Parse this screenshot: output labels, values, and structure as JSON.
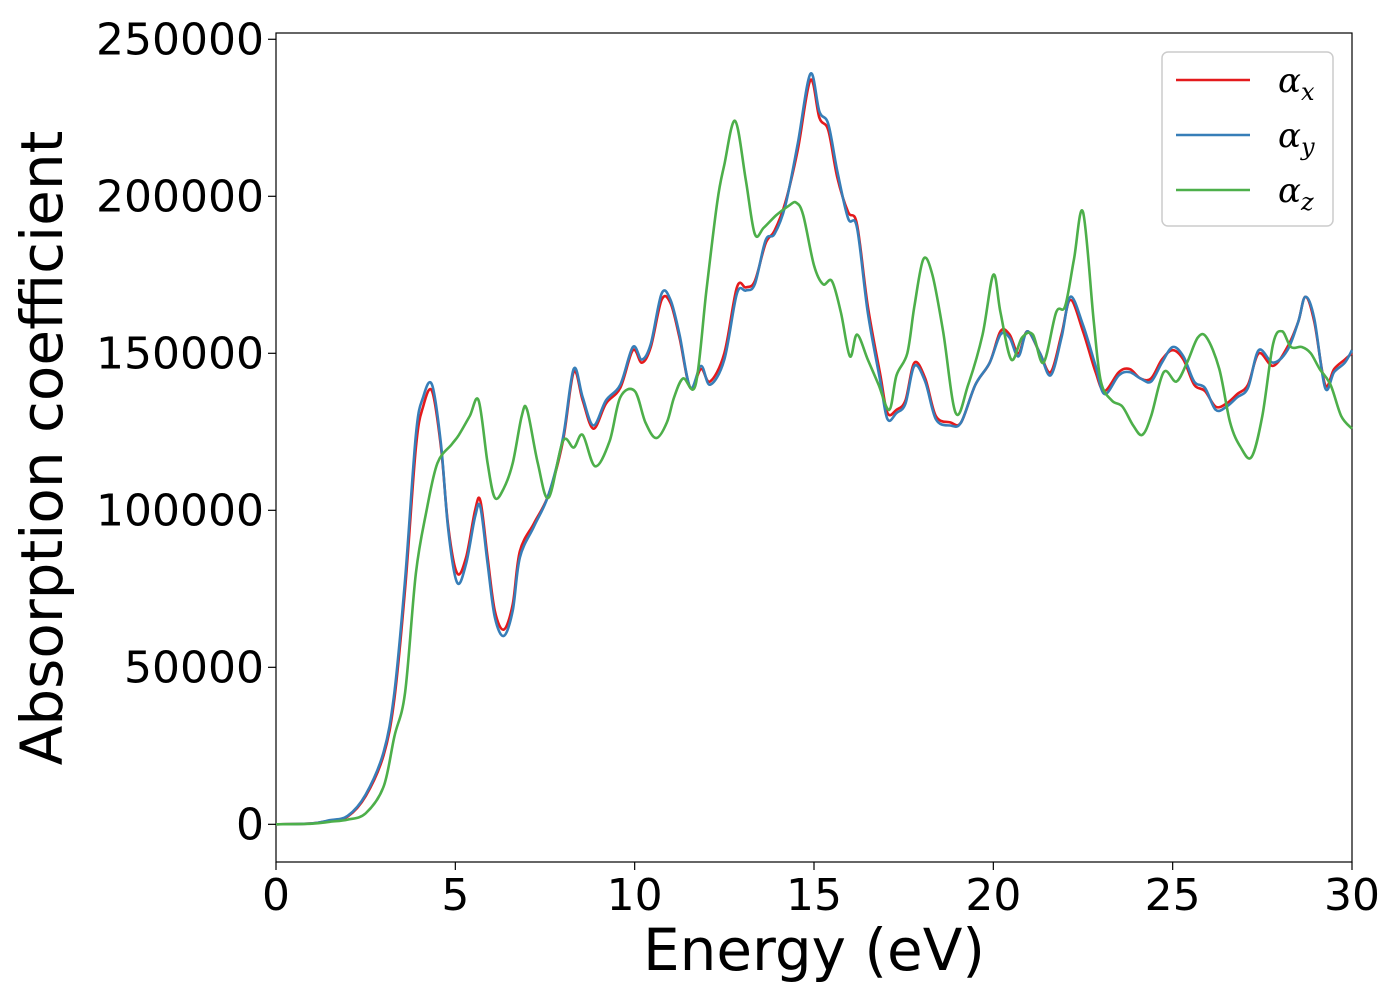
{
  "chart_data": {
    "type": "line",
    "title": "",
    "xlabel": "Energy (eV)",
    "ylabel": "Absorption coefficient",
    "xlim": [
      0,
      30
    ],
    "ylim": [
      -12000,
      252000
    ],
    "xticks": [
      0,
      5,
      10,
      15,
      20,
      25,
      30
    ],
    "yticks": [
      0,
      50000,
      100000,
      150000,
      200000,
      250000
    ],
    "grid": false,
    "legend_position": "top-right",
    "series": [
      {
        "name": "αx",
        "label_base": "α",
        "label_sub": "x",
        "color": "#e41a1c",
        "x": [
          0,
          1,
          1.5,
          2,
          2.5,
          3,
          3.3,
          3.6,
          3.9,
          4.1,
          4.35,
          4.6,
          4.8,
          5.05,
          5.3,
          5.55,
          5.7,
          5.9,
          6.1,
          6.35,
          6.6,
          6.8,
          7.2,
          7.6,
          8.0,
          8.3,
          8.55,
          8.85,
          9.2,
          9.6,
          9.95,
          10.2,
          10.45,
          10.75,
          11.0,
          11.25,
          11.55,
          11.85,
          12.1,
          12.5,
          12.85,
          13.1,
          13.35,
          13.65,
          13.9,
          14.2,
          14.55,
          14.9,
          15.15,
          15.4,
          15.65,
          15.95,
          16.2,
          16.5,
          16.85,
          17.05,
          17.3,
          17.55,
          17.8,
          18.1,
          18.4,
          18.8,
          19.1,
          19.5,
          19.9,
          20.2,
          20.45,
          20.7,
          20.95,
          21.3,
          21.6,
          21.9,
          22.15,
          22.5,
          22.85,
          23.1,
          23.5,
          23.8,
          24.1,
          24.4,
          24.7,
          25.0,
          25.3,
          25.6,
          25.9,
          26.2,
          26.5,
          26.8,
          27.1,
          27.4,
          27.8,
          28.2,
          28.5,
          28.7,
          28.95,
          29.25,
          29.5,
          29.8,
          30.0
        ],
        "values": [
          0,
          300,
          1200,
          2500,
          9000,
          22000,
          40000,
          75000,
          120000,
          133000,
          138000,
          120000,
          95000,
          80000,
          85000,
          100000,
          103000,
          85000,
          68000,
          62000,
          70000,
          87000,
          96000,
          105000,
          122000,
          144000,
          135000,
          126000,
          134000,
          139000,
          151000,
          147000,
          152000,
          167000,
          166000,
          155000,
          139000,
          145000,
          141000,
          150000,
          171000,
          171000,
          173000,
          185000,
          189000,
          198000,
          215000,
          237000,
          225000,
          221000,
          206000,
          195000,
          191000,
          165000,
          143000,
          131000,
          132000,
          135000,
          147000,
          142000,
          130000,
          128000,
          128000,
          140000,
          147000,
          157000,
          156000,
          150000,
          157000,
          150000,
          144000,
          156000,
          167000,
          157000,
          144000,
          138000,
          144000,
          145000,
          142000,
          142000,
          148000,
          151000,
          148000,
          140000,
          138000,
          133000,
          134000,
          137000,
          140000,
          150000,
          146000,
          152000,
          160000,
          168000,
          160000,
          140000,
          145000,
          148000,
          150000
        ]
      },
      {
        "name": "αy",
        "label_base": "α",
        "label_sub": "y",
        "color": "#377eb8",
        "x": [
          0,
          1,
          1.5,
          2,
          2.5,
          3,
          3.3,
          3.6,
          3.9,
          4.1,
          4.35,
          4.6,
          4.8,
          5.05,
          5.3,
          5.55,
          5.7,
          5.9,
          6.1,
          6.35,
          6.6,
          6.8,
          7.2,
          7.6,
          8.0,
          8.3,
          8.55,
          8.85,
          9.2,
          9.6,
          9.95,
          10.2,
          10.45,
          10.75,
          11.0,
          11.25,
          11.55,
          11.85,
          12.1,
          12.5,
          12.85,
          13.1,
          13.35,
          13.65,
          13.9,
          14.2,
          14.55,
          14.9,
          15.15,
          15.4,
          15.65,
          15.95,
          16.2,
          16.5,
          16.85,
          17.05,
          17.3,
          17.55,
          17.8,
          18.1,
          18.4,
          18.8,
          19.1,
          19.5,
          19.9,
          20.2,
          20.45,
          20.7,
          20.95,
          21.3,
          21.6,
          21.9,
          22.15,
          22.5,
          22.85,
          23.1,
          23.5,
          23.8,
          24.1,
          24.4,
          24.7,
          25.0,
          25.3,
          25.6,
          25.9,
          26.2,
          26.5,
          26.8,
          27.1,
          27.4,
          27.8,
          28.2,
          28.5,
          28.7,
          28.95,
          29.25,
          29.5,
          29.8,
          30.0
        ],
        "values": [
          0,
          300,
          1300,
          2700,
          9500,
          23000,
          42000,
          78000,
          124000,
          136000,
          140000,
          121000,
          94000,
          77000,
          83000,
          98000,
          101000,
          83000,
          66000,
          60000,
          68000,
          85000,
          95000,
          105000,
          123000,
          145000,
          136000,
          127000,
          135000,
          140000,
          152000,
          148000,
          153000,
          169000,
          167000,
          156000,
          139000,
          146000,
          140000,
          148000,
          169000,
          170000,
          172000,
          186000,
          188000,
          197000,
          217000,
          239000,
          227000,
          223000,
          208000,
          193000,
          190000,
          163000,
          141000,
          129000,
          131000,
          134000,
          146000,
          141000,
          129000,
          127000,
          128000,
          140000,
          147000,
          156000,
          155000,
          149000,
          157000,
          150000,
          143000,
          155000,
          168000,
          159000,
          146000,
          137000,
          143000,
          144000,
          142000,
          141000,
          147000,
          152000,
          149000,
          141000,
          139000,
          132000,
          133000,
          136000,
          139000,
          151000,
          147000,
          151000,
          160000,
          168000,
          161000,
          139000,
          144000,
          147000,
          151000
        ]
      },
      {
        "name": "αz",
        "label_base": "α",
        "label_sub": "z",
        "color": "#4daf4a",
        "x": [
          0,
          1,
          1.5,
          2,
          2.5,
          3,
          3.3,
          3.6,
          3.9,
          4.2,
          4.5,
          4.9,
          5.1,
          5.4,
          5.65,
          5.9,
          6.1,
          6.35,
          6.6,
          6.85,
          7.0,
          7.3,
          7.6,
          8.0,
          8.3,
          8.55,
          8.9,
          9.3,
          9.6,
          10.0,
          10.3,
          10.6,
          10.9,
          11.1,
          11.35,
          11.7,
          12.0,
          12.3,
          12.5,
          12.8,
          13.1,
          13.35,
          13.6,
          13.95,
          14.3,
          14.5,
          14.7,
          15.0,
          15.25,
          15.5,
          15.75,
          16.0,
          16.2,
          16.5,
          16.8,
          17.1,
          17.3,
          17.6,
          17.8,
          18.05,
          18.3,
          18.6,
          18.95,
          19.3,
          19.7,
          20.0,
          20.2,
          20.5,
          20.8,
          21.1,
          21.4,
          21.75,
          22.0,
          22.25,
          22.5,
          22.8,
          23.0,
          23.3,
          23.6,
          23.9,
          24.15,
          24.4,
          24.75,
          25.1,
          25.4,
          25.7,
          25.95,
          26.3,
          26.6,
          26.9,
          27.2,
          27.5,
          27.8,
          28.05,
          28.3,
          28.6,
          28.85,
          29.1,
          29.4,
          29.7,
          30.0
        ],
        "values": [
          0,
          200,
          800,
          1500,
          3500,
          12000,
          28000,
          42000,
          80000,
          100000,
          115000,
          121000,
          124000,
          130000,
          135000,
          115000,
          104000,
          107000,
          115000,
          130000,
          132000,
          115000,
          104000,
          122000,
          120000,
          124000,
          114000,
          122000,
          136000,
          138000,
          128000,
          123000,
          128000,
          136000,
          142000,
          140000,
          170000,
          198000,
          210000,
          224000,
          205000,
          188000,
          190000,
          194000,
          197000,
          198000,
          194000,
          178000,
          172000,
          173000,
          163000,
          149000,
          156000,
          148000,
          140000,
          132000,
          143000,
          150000,
          165000,
          180000,
          175000,
          157000,
          131000,
          140000,
          156000,
          175000,
          163000,
          148000,
          155000,
          156000,
          147000,
          163000,
          165000,
          180000,
          195000,
          160000,
          141000,
          135000,
          133000,
          127000,
          124000,
          130000,
          144000,
          141000,
          147000,
          155000,
          155000,
          145000,
          128000,
          120000,
          117000,
          130000,
          153000,
          157000,
          152000,
          152000,
          150000,
          145000,
          140000,
          130000,
          126000
        ]
      }
    ]
  }
}
